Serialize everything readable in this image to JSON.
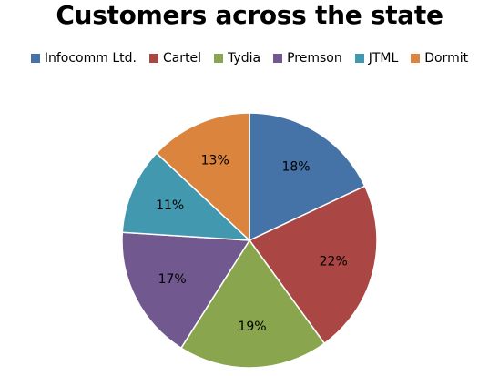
{
  "chart_data": {
    "type": "pie",
    "title": "Customers across the state",
    "legend_position": "top",
    "slices": [
      {
        "name": "Infocomm Ltd.",
        "value": 18,
        "label": "18%",
        "color": "#4572A7"
      },
      {
        "name": "Cartel",
        "value": 22,
        "label": "22%",
        "color": "#AA4643"
      },
      {
        "name": "Tydia",
        "value": 19,
        "label": "19%",
        "color": "#89A54E"
      },
      {
        "name": "Premson",
        "value": 17,
        "label": "17%",
        "color": "#71588F"
      },
      {
        "name": "JTML",
        "value": 11,
        "label": "11%",
        "color": "#4198AF"
      },
      {
        "name": "Dormit",
        "value": 13,
        "label": "13%",
        "color": "#DB843D"
      }
    ]
  }
}
